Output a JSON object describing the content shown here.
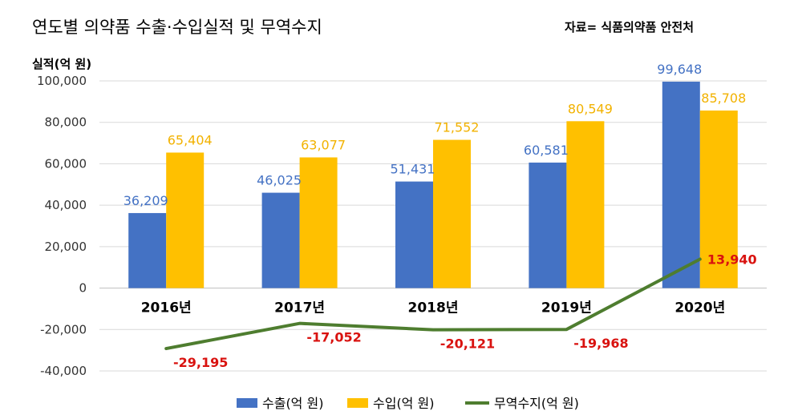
{
  "header": {
    "title": "연도별 의약품 수출·수입실적 및 무역수지",
    "source": "자료= 식품의약품 안전처"
  },
  "chart_data": {
    "type": "bar",
    "title": "연도별 의약품 수출·수입실적 및 무역수지",
    "ylabel": "실적(억 원)",
    "categories": [
      "2016년",
      "2017년",
      "2018년",
      "2019년",
      "2020년"
    ],
    "ylim": [
      -40000,
      100000
    ],
    "yticks": [
      100000,
      80000,
      60000,
      40000,
      20000,
      0,
      -20000,
      -40000
    ],
    "ytick_labels": [
      "100,000",
      "80,000",
      "60,000",
      "40,000",
      "20,000",
      "0",
      "-20,000",
      "-40,000"
    ],
    "grid": true,
    "legend_position": "bottom",
    "series": [
      {
        "name": "수출(억 원)",
        "type": "bar",
        "color": "#4472C4",
        "label_color": "#4472C4",
        "values": [
          36209,
          46025,
          51431,
          60581,
          99648
        ],
        "labels": [
          "36,209",
          "46,025",
          "51,431",
          "60,581",
          "99,648"
        ]
      },
      {
        "name": "수입(억 원)",
        "type": "bar",
        "color": "#FFC000",
        "label_color": "#F2B200",
        "values": [
          65404,
          63077,
          71552,
          80549,
          85708
        ],
        "labels": [
          "65,404",
          "63,077",
          "71,552",
          "80,549",
          "85,708"
        ]
      },
      {
        "name": "무역수지(억 원)",
        "type": "line",
        "color": "#4E7D2F",
        "label_color": "#D9120F",
        "values": [
          -29195,
          -17052,
          -20121,
          -19968,
          13940
        ],
        "labels": [
          "-29,195",
          "-17,052",
          "-20,121",
          "-19,968",
          "13,940"
        ]
      }
    ]
  }
}
